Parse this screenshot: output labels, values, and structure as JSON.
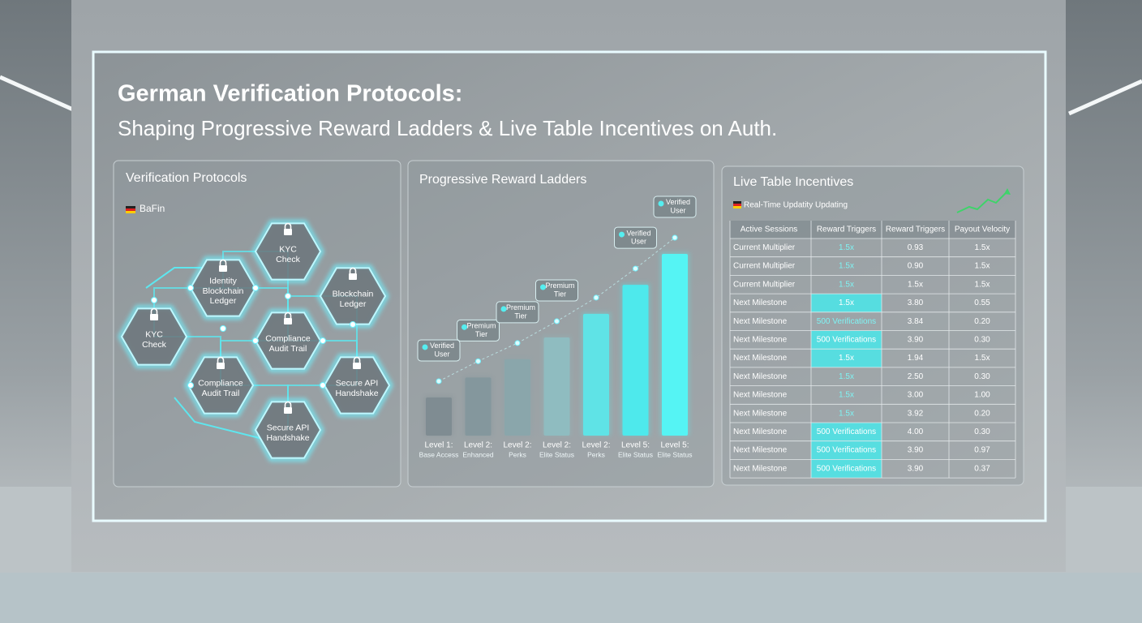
{
  "header": {
    "title": "German Verification Protocols:",
    "subtitle": "Shaping Progressive Reward Ladders & Live Table Incentives on Auth."
  },
  "verification": {
    "title": "Verification Protocols",
    "badge": "BaFin",
    "nodes": [
      {
        "lines": [
          "KYC",
          "Check"
        ]
      },
      {
        "lines": [
          "Identity",
          "Blockchain",
          "Ledger"
        ]
      },
      {
        "lines": [
          "Blockchain",
          "Ledger"
        ]
      },
      {
        "lines": [
          "KYC",
          "Check"
        ]
      },
      {
        "lines": [
          "Compliance",
          "Audit Trail"
        ]
      },
      {
        "lines": [
          "Compliance",
          "Audit Trail"
        ]
      },
      {
        "lines": [
          "Secure API",
          "Handshake"
        ]
      },
      {
        "lines": [
          "Secure API",
          "Handshake"
        ]
      }
    ]
  },
  "chart_data": {
    "type": "bar",
    "title": "Progressive Reward Ladders",
    "categories": [
      "Level 1:",
      "Level 2:",
      "Level 2:",
      "Level 2:",
      "Level 2:",
      "Level 5:",
      "Level 5:"
    ],
    "category_details": [
      "Base Access",
      "Enhanced",
      "Perks",
      "Elite Status",
      "Perks",
      "Elite Status",
      "Elite Status"
    ],
    "values": [
      21,
      32,
      42,
      54,
      67,
      83,
      100
    ],
    "colors": [
      "#7f8c92",
      "#84979d",
      "#8aa6ab",
      "#8fbcc0",
      "#5fe3e6",
      "#4ee9ec",
      "#55f4f4"
    ],
    "annotations": [
      [
        "Verified",
        "User"
      ],
      [
        "Premium",
        "Tier"
      ],
      [
        "Premium",
        "Tier"
      ],
      [
        "Premium",
        "Tier"
      ],
      null,
      [
        "Verified",
        "User"
      ],
      [
        "Verified",
        "User"
      ]
    ]
  },
  "table": {
    "title": "Live Table Incentives",
    "status": "Real-Time Updatity Updating",
    "columns": [
      "Active Sessions",
      "Reward Triggers",
      "Reward Triggers",
      "Payout Velocity"
    ],
    "rows": [
      [
        "Current Multiplier",
        "1.5x",
        "0.93",
        "1.5x"
      ],
      [
        "Current Multiplier",
        "1.5x",
        "0.90",
        "1.5x"
      ],
      [
        "Current Multiplier",
        "1.5x",
        "1.5x",
        "1.5x"
      ],
      [
        "Next Milestone",
        "1.5x",
        "3.80",
        "0.55"
      ],
      [
        "Next Milestone",
        "500 Verifications",
        "3.84",
        "0.20"
      ],
      [
        "Next Milestone",
        "500 Verifications",
        "3.90",
        "0.30"
      ],
      [
        "Next Milestone",
        "1.5x",
        "1.94",
        "1.5x"
      ],
      [
        "Next Milestone",
        "1.5x",
        "2.50",
        "0.30"
      ],
      [
        "Next Milestone",
        "1.5x",
        "3.00",
        "1.00"
      ],
      [
        "Next Milestone",
        "1.5x",
        "3.92",
        "0.20"
      ],
      [
        "Next Milestone",
        "500 Verifications",
        "4.00",
        "0.30"
      ],
      [
        "Next Milestone",
        "500 Verifications",
        "3.90",
        "0.97"
      ],
      [
        "Next Milestone",
        "500 Verifications",
        "3.90",
        "0.37"
      ]
    ],
    "highlighted_rows": [
      3,
      5,
      6,
      10,
      11,
      12
    ]
  }
}
